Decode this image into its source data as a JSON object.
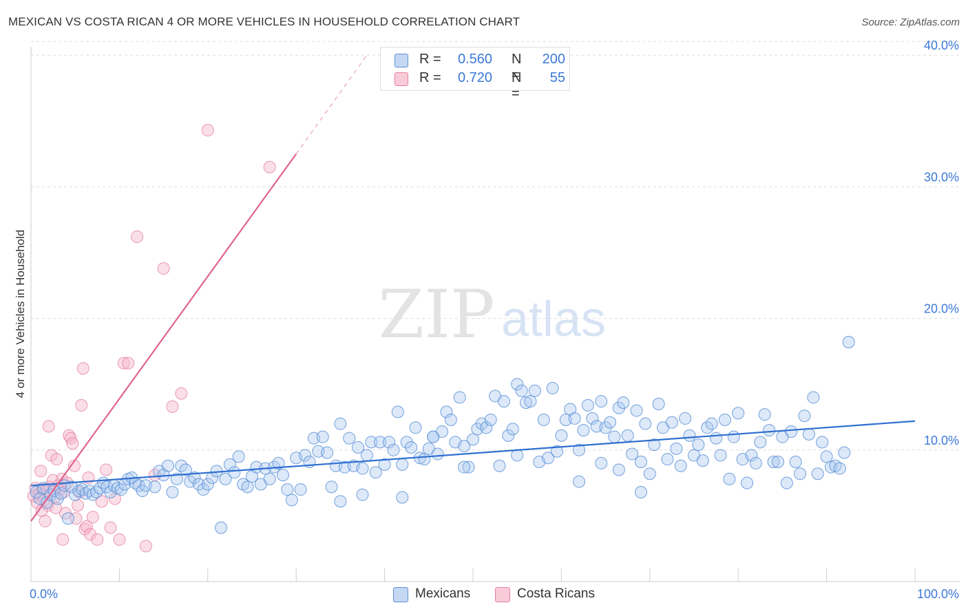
{
  "title": "MEXICAN VS COSTA RICAN 4 OR MORE VEHICLES IN HOUSEHOLD CORRELATION CHART",
  "source": "Source: ZipAtlas.com",
  "watermark": {
    "zip": "ZIP",
    "atlas": "atlas"
  },
  "legend_stats": {
    "mexicans": {
      "r_label": "R =",
      "r_value": "0.560",
      "n_label": "N =",
      "n_value": "200"
    },
    "costa_ricans": {
      "r_label": "R =",
      "r_value": "0.720",
      "n_label": "N =",
      "n_value": "55"
    }
  },
  "legend_bottom": {
    "mexicans": "Mexicans",
    "costa_ricans": "Costa Ricans"
  },
  "colors": {
    "blue_fill": "#aac8f0",
    "blue_stroke": "#5b8fd6",
    "blue_line": "#2f6fd0",
    "pink_fill": "#f6b8cb",
    "pink_stroke": "#e47fa0",
    "pink_line": "#e0638e",
    "axis_text": "#3b78d8",
    "grid": "#dddddd"
  },
  "chart_data": {
    "type": "scatter",
    "title": "MEXICAN VS COSTA RICAN 4 OR MORE VEHICLES IN HOUSEHOLD CORRELATION CHART",
    "xlabel": "",
    "ylabel": "4 or more Vehicles in Household",
    "xlim": [
      0,
      100
    ],
    "ylim": [
      0,
      42
    ],
    "x_tick_labels": [
      "0.0%",
      "100.0%"
    ],
    "y_ticks": [
      10,
      20,
      30,
      40
    ],
    "y_tick_labels": [
      "10.0%",
      "20.0%",
      "30.0%",
      "40.0%"
    ],
    "grid": true,
    "series": [
      {
        "name": "Mexicans",
        "trendline": {
          "x": [
            0,
            100
          ],
          "y": [
            7.3,
            12.2
          ]
        },
        "points": [
          [
            0.6,
            6.8
          ],
          [
            1.0,
            6.3
          ],
          [
            1.4,
            7.1
          ],
          [
            1.8,
            6.0
          ],
          [
            2.2,
            6.6
          ],
          [
            2.6,
            6.9
          ],
          [
            3.0,
            6.3
          ],
          [
            3.4,
            6.7
          ],
          [
            3.8,
            7.3
          ],
          [
            4.2,
            4.8
          ],
          [
            4.6,
            7.2
          ],
          [
            5.0,
            6.6
          ],
          [
            5.4,
            6.9
          ],
          [
            5.8,
            7.0
          ],
          [
            6.2,
            6.7
          ],
          [
            6.6,
            6.9
          ],
          [
            7.0,
            6.6
          ],
          [
            7.4,
            6.8
          ],
          [
            7.8,
            7.1
          ],
          [
            8.2,
            7.5
          ],
          [
            8.6,
            7.2
          ],
          [
            9.0,
            6.8
          ],
          [
            9.4,
            7.3
          ],
          [
            9.8,
            7.1
          ],
          [
            10.2,
            7.0
          ],
          [
            10.6,
            7.4
          ],
          [
            11.0,
            7.8
          ],
          [
            11.4,
            7.9
          ],
          [
            11.8,
            7.5
          ],
          [
            12.2,
            7.3
          ],
          [
            12.6,
            6.9
          ],
          [
            13.0,
            7.3
          ],
          [
            14.0,
            7.2
          ],
          [
            14.5,
            8.4
          ],
          [
            15.0,
            8.1
          ],
          [
            15.5,
            8.8
          ],
          [
            16.0,
            6.8
          ],
          [
            16.5,
            7.8
          ],
          [
            17.0,
            8.8
          ],
          [
            17.5,
            8.5
          ],
          [
            18.0,
            7.6
          ],
          [
            18.5,
            7.9
          ],
          [
            19.0,
            7.4
          ],
          [
            19.5,
            7.0
          ],
          [
            20.0,
            7.4
          ],
          [
            20.5,
            7.9
          ],
          [
            21.0,
            8.4
          ],
          [
            21.5,
            4.1
          ],
          [
            22.0,
            7.8
          ],
          [
            22.5,
            8.9
          ],
          [
            23.0,
            8.3
          ],
          [
            23.5,
            9.5
          ],
          [
            24.0,
            7.4
          ],
          [
            24.5,
            7.2
          ],
          [
            25.0,
            8.0
          ],
          [
            25.5,
            8.7
          ],
          [
            26.0,
            7.4
          ],
          [
            26.5,
            8.6
          ],
          [
            27.0,
            7.8
          ],
          [
            27.5,
            8.7
          ],
          [
            28.0,
            9.0
          ],
          [
            28.5,
            8.1
          ],
          [
            29.0,
            7.0
          ],
          [
            29.5,
            6.2
          ],
          [
            30.0,
            9.4
          ],
          [
            30.5,
            7.0
          ],
          [
            31.0,
            9.6
          ],
          [
            31.5,
            9.1
          ],
          [
            32.0,
            10.9
          ],
          [
            32.5,
            9.9
          ],
          [
            33.0,
            11.0
          ],
          [
            33.5,
            9.8
          ],
          [
            34.0,
            7.2
          ],
          [
            34.5,
            8.8
          ],
          [
            35.0,
            12.0
          ],
          [
            35.5,
            8.7
          ],
          [
            36.0,
            10.9
          ],
          [
            36.5,
            8.8
          ],
          [
            37.0,
            10.2
          ],
          [
            37.5,
            8.6
          ],
          [
            38.0,
            9.6
          ],
          [
            38.5,
            10.6
          ],
          [
            39.0,
            8.3
          ],
          [
            39.5,
            10.6
          ],
          [
            40.0,
            8.9
          ],
          [
            40.5,
            10.6
          ],
          [
            41.0,
            10.0
          ],
          [
            41.5,
            12.9
          ],
          [
            42.0,
            8.9
          ],
          [
            42.5,
            10.6
          ],
          [
            43.0,
            10.2
          ],
          [
            43.5,
            11.7
          ],
          [
            44.0,
            9.4
          ],
          [
            44.5,
            9.3
          ],
          [
            45.0,
            10.1
          ],
          [
            45.5,
            11.0
          ],
          [
            46.0,
            9.7
          ],
          [
            46.5,
            11.4
          ],
          [
            47.0,
            12.9
          ],
          [
            47.5,
            12.3
          ],
          [
            48.0,
            10.6
          ],
          [
            48.5,
            14.0
          ],
          [
            49.0,
            10.3
          ],
          [
            49.5,
            8.7
          ],
          [
            50.0,
            10.8
          ],
          [
            50.5,
            11.6
          ],
          [
            51.0,
            12.0
          ],
          [
            51.5,
            11.7
          ],
          [
            52.0,
            12.3
          ],
          [
            52.5,
            14.1
          ],
          [
            53.0,
            8.8
          ],
          [
            53.5,
            13.7
          ],
          [
            54.0,
            11.1
          ],
          [
            54.5,
            11.6
          ],
          [
            55.0,
            15.0
          ],
          [
            55.5,
            14.5
          ],
          [
            56.0,
            13.6
          ],
          [
            56.5,
            13.7
          ],
          [
            57.0,
            14.5
          ],
          [
            57.5,
            9.1
          ],
          [
            58.0,
            12.3
          ],
          [
            58.5,
            9.4
          ],
          [
            59.0,
            14.7
          ],
          [
            59.5,
            9.9
          ],
          [
            60.0,
            11.1
          ],
          [
            60.5,
            12.3
          ],
          [
            61.0,
            13.1
          ],
          [
            61.5,
            12.4
          ],
          [
            62.0,
            10.0
          ],
          [
            62.5,
            11.5
          ],
          [
            63.0,
            13.4
          ],
          [
            63.5,
            12.4
          ],
          [
            64.0,
            11.8
          ],
          [
            64.5,
            13.7
          ],
          [
            65.0,
            11.7
          ],
          [
            65.5,
            12.1
          ],
          [
            66.0,
            11.0
          ],
          [
            66.5,
            13.2
          ],
          [
            67.0,
            13.6
          ],
          [
            67.5,
            11.1
          ],
          [
            68.0,
            9.7
          ],
          [
            68.5,
            13.0
          ],
          [
            69.0,
            9.1
          ],
          [
            69.5,
            12.0
          ],
          [
            70.0,
            8.2
          ],
          [
            70.5,
            10.4
          ],
          [
            71.0,
            13.5
          ],
          [
            71.5,
            11.7
          ],
          [
            72.0,
            9.3
          ],
          [
            72.5,
            12.1
          ],
          [
            73.0,
            10.1
          ],
          [
            73.5,
            8.8
          ],
          [
            74.0,
            12.4
          ],
          [
            74.5,
            11.1
          ],
          [
            75.0,
            9.6
          ],
          [
            75.5,
            10.4
          ],
          [
            76.0,
            9.2
          ],
          [
            76.5,
            11.7
          ],
          [
            77.0,
            12.0
          ],
          [
            77.5,
            10.9
          ],
          [
            78.0,
            9.6
          ],
          [
            78.5,
            12.3
          ],
          [
            79.0,
            7.8
          ],
          [
            79.5,
            11.0
          ],
          [
            80.0,
            12.8
          ],
          [
            80.5,
            9.3
          ],
          [
            81.0,
            7.5
          ],
          [
            81.5,
            9.6
          ],
          [
            82.0,
            9.0
          ],
          [
            82.5,
            10.6
          ],
          [
            83.0,
            12.7
          ],
          [
            83.5,
            11.5
          ],
          [
            84.0,
            9.1
          ],
          [
            84.5,
            9.1
          ],
          [
            85.0,
            11.0
          ],
          [
            85.5,
            7.5
          ],
          [
            86.0,
            11.4
          ],
          [
            86.5,
            9.1
          ],
          [
            87.0,
            8.2
          ],
          [
            87.5,
            12.6
          ],
          [
            88.0,
            11.2
          ],
          [
            88.5,
            14.0
          ],
          [
            89.0,
            8.2
          ],
          [
            89.5,
            10.6
          ],
          [
            90.0,
            9.5
          ],
          [
            90.5,
            8.7
          ],
          [
            91.0,
            8.8
          ],
          [
            91.5,
            8.6
          ],
          [
            92.0,
            9.8
          ],
          [
            92.5,
            18.2
          ],
          [
            64.5,
            9.0
          ],
          [
            45.5,
            11.0
          ],
          [
            55.0,
            9.6
          ],
          [
            49.0,
            8.7
          ],
          [
            62.0,
            7.6
          ],
          [
            66.5,
            8.5
          ],
          [
            69.0,
            6.8
          ],
          [
            42.0,
            6.4
          ],
          [
            37.5,
            6.6
          ],
          [
            35.0,
            6.1
          ]
        ]
      },
      {
        "name": "Costa Ricans",
        "trendline": {
          "x": [
            0,
            30
          ],
          "y": [
            4.6,
            32.5
          ]
        },
        "trendline_dashed": {
          "x": [
            30,
            38
          ],
          "y": [
            32.5,
            40.0
          ]
        },
        "points": [
          [
            0.3,
            6.5
          ],
          [
            0.5,
            7.1
          ],
          [
            0.7,
            6.0
          ],
          [
            0.9,
            6.7
          ],
          [
            1.1,
            8.4
          ],
          [
            1.3,
            7.0
          ],
          [
            1.5,
            6.2
          ],
          [
            1.7,
            6.9
          ],
          [
            1.9,
            5.8
          ],
          [
            2.1,
            7.2
          ],
          [
            2.3,
            9.6
          ],
          [
            2.5,
            7.7
          ],
          [
            2.7,
            6.4
          ],
          [
            2.9,
            9.3
          ],
          [
            3.1,
            7.3
          ],
          [
            3.3,
            7.0
          ],
          [
            3.5,
            7.8
          ],
          [
            3.7,
            6.8
          ],
          [
            3.9,
            5.2
          ],
          [
            4.1,
            7.5
          ],
          [
            4.3,
            11.1
          ],
          [
            4.5,
            10.9
          ],
          [
            4.7,
            10.5
          ],
          [
            4.9,
            8.8
          ],
          [
            5.1,
            4.8
          ],
          [
            5.3,
            5.8
          ],
          [
            5.5,
            6.8
          ],
          [
            5.7,
            13.4
          ],
          [
            5.9,
            16.2
          ],
          [
            6.1,
            4.0
          ],
          [
            6.3,
            4.2
          ],
          [
            6.5,
            7.9
          ],
          [
            6.7,
            3.6
          ],
          [
            7.0,
            4.9
          ],
          [
            7.5,
            3.2
          ],
          [
            8.0,
            6.1
          ],
          [
            8.5,
            8.5
          ],
          [
            9.0,
            4.1
          ],
          [
            9.5,
            6.3
          ],
          [
            10.0,
            3.2
          ],
          [
            10.5,
            16.6
          ],
          [
            11.0,
            16.6
          ],
          [
            12.0,
            26.2
          ],
          [
            13.0,
            2.7
          ],
          [
            14.0,
            8.1
          ],
          [
            15.0,
            23.8
          ],
          [
            16.0,
            13.3
          ],
          [
            17.0,
            14.3
          ],
          [
            20.0,
            34.3
          ],
          [
            27.0,
            31.5
          ],
          [
            2.0,
            11.8
          ],
          [
            1.2,
            5.4
          ],
          [
            3.6,
            3.2
          ],
          [
            2.8,
            5.6
          ],
          [
            1.6,
            4.6
          ]
        ]
      }
    ]
  }
}
